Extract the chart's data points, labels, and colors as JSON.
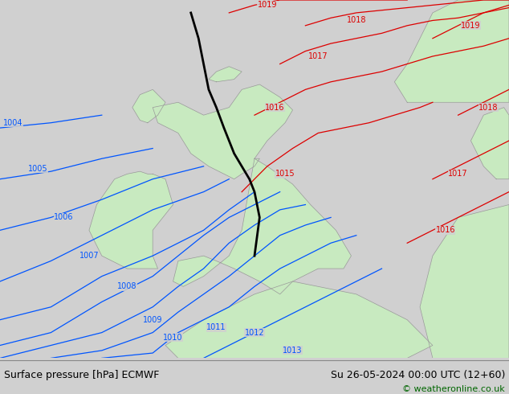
{
  "title_left": "Surface pressure [hPa] ECMWF",
  "title_right": "Su 26-05-2024 00:00 UTC (12+60)",
  "copyright": "© weatheronline.co.uk",
  "bg_color": "#d0d0d0",
  "land_color": "#c8eac0",
  "sea_color": "#d0d0d0",
  "border_color": "#999999",
  "blue_color": "#0055ff",
  "red_color": "#dd0000",
  "black_color": "#000000",
  "bottom_color": "#c8c8c8",
  "text_color": "#000000",
  "green_text": "#006600",
  "figsize": [
    6.34,
    4.9
  ],
  "dpi": 100,
  "lon_min": -12.0,
  "lon_max": 8.0,
  "lat_min": 48.0,
  "lat_max": 62.0
}
